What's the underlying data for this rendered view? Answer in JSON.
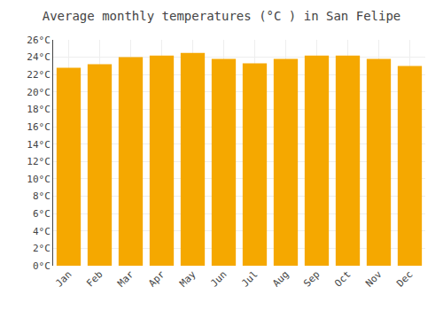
{
  "chart_data": {
    "type": "bar",
    "title": "Average monthly temperatures (°C ) in San Felipe",
    "categories": [
      "Jan",
      "Feb",
      "Mar",
      "Apr",
      "May",
      "Jun",
      "Jul",
      "Aug",
      "Sep",
      "Oct",
      "Nov",
      "Dec"
    ],
    "values": [
      22.8,
      23.2,
      24.0,
      24.2,
      24.5,
      23.8,
      23.3,
      23.8,
      24.2,
      24.2,
      23.8,
      23.0
    ],
    "color": "#F5A800",
    "ylim": [
      0,
      26
    ],
    "yticks": [
      {
        "value": 0,
        "label": "0°C"
      },
      {
        "value": 2,
        "label": "2°C"
      },
      {
        "value": 4,
        "label": "4°C"
      },
      {
        "value": 6,
        "label": "6°C"
      },
      {
        "value": 8,
        "label": "8°C"
      },
      {
        "value": 10,
        "label": "10°C"
      },
      {
        "value": 12,
        "label": "12°C"
      },
      {
        "value": 14,
        "label": "14°C"
      },
      {
        "value": 16,
        "label": "16°C"
      },
      {
        "value": 18,
        "label": "18°C"
      },
      {
        "value": 20,
        "label": "20°C"
      },
      {
        "value": 22,
        "label": "22°C"
      },
      {
        "value": 24,
        "label": "24°C"
      },
      {
        "value": 26,
        "label": "26°C"
      }
    ],
    "grid": true
  }
}
